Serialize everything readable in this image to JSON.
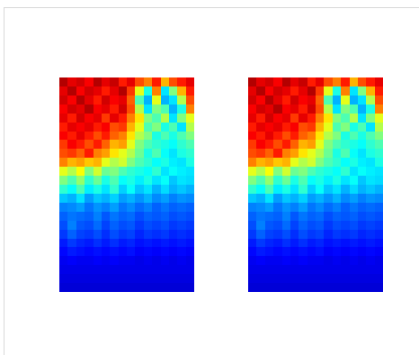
{
  "chart_data": [
    {
      "type": "heatmap",
      "tick_labels": false,
      "zlim": [
        0,
        1
      ],
      "cells": [
        [
          0.95,
          0.9,
          0.92,
          0.88,
          0.95,
          0.9,
          0.93,
          0.85,
          0.9,
          0.8,
          0.75,
          0.85,
          0.7,
          0.8,
          0.85,
          0.9
        ],
        [
          0.9,
          0.95,
          0.88,
          0.92,
          0.9,
          0.85,
          0.9,
          0.95,
          0.82,
          0.6,
          0.4,
          0.75,
          0.35,
          0.5,
          0.7,
          0.85
        ],
        [
          0.92,
          0.88,
          0.95,
          0.9,
          0.85,
          0.92,
          0.88,
          0.9,
          0.78,
          0.45,
          0.3,
          0.6,
          0.3,
          0.35,
          0.55,
          0.8
        ],
        [
          0.88,
          0.92,
          0.9,
          0.95,
          0.88,
          0.9,
          0.85,
          0.92,
          0.8,
          0.55,
          0.35,
          0.5,
          0.45,
          0.3,
          0.4,
          0.75
        ],
        [
          0.9,
          0.85,
          0.92,
          0.88,
          0.9,
          0.82,
          0.9,
          0.85,
          0.75,
          0.65,
          0.5,
          0.45,
          0.55,
          0.35,
          0.5,
          0.6
        ],
        [
          0.85,
          0.9,
          0.88,
          0.9,
          0.85,
          0.88,
          0.8,
          0.82,
          0.7,
          0.6,
          0.45,
          0.5,
          0.4,
          0.45,
          0.35,
          0.55
        ],
        [
          0.88,
          0.85,
          0.9,
          0.85,
          0.8,
          0.85,
          0.78,
          0.75,
          0.65,
          0.55,
          0.5,
          0.4,
          0.45,
          0.4,
          0.45,
          0.5
        ],
        [
          0.82,
          0.88,
          0.85,
          0.8,
          0.85,
          0.78,
          0.7,
          0.72,
          0.6,
          0.5,
          0.45,
          0.42,
          0.4,
          0.38,
          0.42,
          0.45
        ],
        [
          0.8,
          0.82,
          0.78,
          0.85,
          0.75,
          0.72,
          0.65,
          0.6,
          0.55,
          0.48,
          0.4,
          0.45,
          0.38,
          0.35,
          0.4,
          0.42
        ],
        [
          0.75,
          0.7,
          0.72,
          0.68,
          0.7,
          0.6,
          0.55,
          0.58,
          0.5,
          0.45,
          0.42,
          0.38,
          0.4,
          0.36,
          0.35,
          0.4
        ],
        [
          0.6,
          0.55,
          0.62,
          0.5,
          0.58,
          0.48,
          0.5,
          0.45,
          0.42,
          0.4,
          0.38,
          0.42,
          0.35,
          0.38,
          0.36,
          0.35
        ],
        [
          0.5,
          0.45,
          0.52,
          0.42,
          0.48,
          0.4,
          0.45,
          0.38,
          0.4,
          0.36,
          0.4,
          0.35,
          0.38,
          0.32,
          0.35,
          0.34
        ],
        [
          0.42,
          0.38,
          0.45,
          0.36,
          0.4,
          0.35,
          0.42,
          0.33,
          0.38,
          0.32,
          0.35,
          0.3,
          0.34,
          0.3,
          0.32,
          0.3
        ],
        [
          0.32,
          0.3,
          0.35,
          0.28,
          0.32,
          0.3,
          0.33,
          0.28,
          0.3,
          0.27,
          0.3,
          0.26,
          0.28,
          0.25,
          0.27,
          0.26
        ],
        [
          0.25,
          0.26,
          0.28,
          0.24,
          0.27,
          0.25,
          0.28,
          0.24,
          0.26,
          0.23,
          0.25,
          0.22,
          0.24,
          0.22,
          0.23,
          0.22
        ],
        [
          0.22,
          0.24,
          0.23,
          0.22,
          0.25,
          0.21,
          0.24,
          0.22,
          0.23,
          0.2,
          0.22,
          0.21,
          0.22,
          0.2,
          0.21,
          0.2
        ],
        [
          0.2,
          0.25,
          0.21,
          0.2,
          0.23,
          0.19,
          0.22,
          0.2,
          0.21,
          0.18,
          0.2,
          0.19,
          0.2,
          0.18,
          0.19,
          0.18
        ],
        [
          0.18,
          0.22,
          0.19,
          0.18,
          0.2,
          0.17,
          0.2,
          0.18,
          0.19,
          0.16,
          0.18,
          0.17,
          0.18,
          0.16,
          0.17,
          0.16
        ],
        [
          0.15,
          0.18,
          0.16,
          0.15,
          0.17,
          0.15,
          0.17,
          0.15,
          0.16,
          0.14,
          0.15,
          0.14,
          0.15,
          0.14,
          0.15,
          0.14
        ],
        [
          0.13,
          0.15,
          0.14,
          0.13,
          0.14,
          0.13,
          0.14,
          0.13,
          0.14,
          0.12,
          0.13,
          0.12,
          0.13,
          0.12,
          0.13,
          0.12
        ],
        [
          0.11,
          0.12,
          0.11,
          0.11,
          0.12,
          0.11,
          0.12,
          0.11,
          0.11,
          0.1,
          0.11,
          0.1,
          0.11,
          0.1,
          0.11,
          0.1
        ],
        [
          0.1,
          0.1,
          0.1,
          0.1,
          0.1,
          0.1,
          0.1,
          0.1,
          0.1,
          0.1,
          0.1,
          0.1,
          0.1,
          0.1,
          0.1,
          0.1
        ],
        [
          0.09,
          0.09,
          0.09,
          0.09,
          0.09,
          0.09,
          0.09,
          0.09,
          0.09,
          0.09,
          0.09,
          0.09,
          0.09,
          0.09,
          0.09,
          0.09
        ],
        [
          0.08,
          0.08,
          0.08,
          0.08,
          0.08,
          0.08,
          0.08,
          0.08,
          0.08,
          0.08,
          0.08,
          0.08,
          0.08,
          0.08,
          0.08,
          0.08
        ]
      ]
    },
    {
      "type": "heatmap",
      "tick_labels": false,
      "zlim": [
        0,
        1
      ],
      "cells": [
        [
          0.95,
          0.9,
          0.92,
          0.88,
          0.95,
          0.9,
          0.93,
          0.85,
          0.9,
          0.8,
          0.75,
          0.85,
          0.7,
          0.8,
          0.85,
          0.9
        ],
        [
          0.9,
          0.95,
          0.88,
          0.92,
          0.9,
          0.85,
          0.9,
          0.95,
          0.82,
          0.6,
          0.4,
          0.75,
          0.35,
          0.5,
          0.7,
          0.85
        ],
        [
          0.92,
          0.88,
          0.95,
          0.9,
          0.85,
          0.92,
          0.88,
          0.9,
          0.78,
          0.45,
          0.3,
          0.6,
          0.3,
          0.35,
          0.55,
          0.8
        ],
        [
          0.88,
          0.92,
          0.9,
          0.95,
          0.88,
          0.9,
          0.85,
          0.92,
          0.8,
          0.55,
          0.35,
          0.5,
          0.45,
          0.3,
          0.4,
          0.75
        ],
        [
          0.9,
          0.85,
          0.92,
          0.88,
          0.9,
          0.82,
          0.9,
          0.85,
          0.75,
          0.65,
          0.5,
          0.45,
          0.55,
          0.35,
          0.5,
          0.6
        ],
        [
          0.85,
          0.9,
          0.88,
          0.9,
          0.85,
          0.88,
          0.8,
          0.82,
          0.7,
          0.6,
          0.45,
          0.5,
          0.4,
          0.45,
          0.35,
          0.55
        ],
        [
          0.88,
          0.85,
          0.9,
          0.85,
          0.8,
          0.85,
          0.78,
          0.75,
          0.65,
          0.55,
          0.5,
          0.4,
          0.45,
          0.4,
          0.45,
          0.5
        ],
        [
          0.82,
          0.88,
          0.85,
          0.8,
          0.85,
          0.78,
          0.7,
          0.72,
          0.6,
          0.5,
          0.45,
          0.42,
          0.4,
          0.38,
          0.42,
          0.45
        ],
        [
          0.8,
          0.82,
          0.78,
          0.85,
          0.75,
          0.72,
          0.65,
          0.6,
          0.55,
          0.48,
          0.4,
          0.45,
          0.38,
          0.35,
          0.4,
          0.42
        ],
        [
          0.75,
          0.7,
          0.72,
          0.68,
          0.7,
          0.6,
          0.55,
          0.58,
          0.5,
          0.45,
          0.42,
          0.38,
          0.4,
          0.36,
          0.35,
          0.4
        ],
        [
          0.6,
          0.55,
          0.62,
          0.5,
          0.58,
          0.48,
          0.5,
          0.45,
          0.42,
          0.4,
          0.38,
          0.42,
          0.35,
          0.38,
          0.36,
          0.35
        ],
        [
          0.5,
          0.45,
          0.52,
          0.42,
          0.48,
          0.4,
          0.45,
          0.38,
          0.4,
          0.36,
          0.4,
          0.35,
          0.38,
          0.32,
          0.35,
          0.34
        ],
        [
          0.42,
          0.38,
          0.45,
          0.36,
          0.4,
          0.35,
          0.42,
          0.33,
          0.38,
          0.32,
          0.35,
          0.3,
          0.34,
          0.3,
          0.32,
          0.3
        ],
        [
          0.32,
          0.3,
          0.35,
          0.28,
          0.32,
          0.3,
          0.33,
          0.28,
          0.3,
          0.27,
          0.3,
          0.26,
          0.28,
          0.25,
          0.27,
          0.26
        ],
        [
          0.25,
          0.26,
          0.28,
          0.24,
          0.27,
          0.25,
          0.28,
          0.24,
          0.26,
          0.23,
          0.25,
          0.22,
          0.24,
          0.22,
          0.23,
          0.22
        ],
        [
          0.22,
          0.24,
          0.23,
          0.22,
          0.25,
          0.21,
          0.24,
          0.22,
          0.23,
          0.2,
          0.22,
          0.21,
          0.22,
          0.2,
          0.21,
          0.2
        ],
        [
          0.2,
          0.25,
          0.21,
          0.2,
          0.23,
          0.19,
          0.22,
          0.2,
          0.21,
          0.18,
          0.2,
          0.19,
          0.2,
          0.18,
          0.19,
          0.18
        ],
        [
          0.18,
          0.22,
          0.19,
          0.18,
          0.2,
          0.17,
          0.2,
          0.18,
          0.19,
          0.16,
          0.18,
          0.17,
          0.18,
          0.16,
          0.17,
          0.16
        ],
        [
          0.15,
          0.18,
          0.16,
          0.15,
          0.17,
          0.15,
          0.17,
          0.15,
          0.16,
          0.14,
          0.15,
          0.14,
          0.15,
          0.14,
          0.15,
          0.14
        ],
        [
          0.13,
          0.15,
          0.14,
          0.13,
          0.14,
          0.13,
          0.14,
          0.13,
          0.14,
          0.12,
          0.13,
          0.12,
          0.13,
          0.12,
          0.13,
          0.12
        ],
        [
          0.11,
          0.12,
          0.11,
          0.11,
          0.12,
          0.11,
          0.12,
          0.11,
          0.11,
          0.1,
          0.11,
          0.1,
          0.11,
          0.1,
          0.11,
          0.1
        ],
        [
          0.1,
          0.1,
          0.1,
          0.1,
          0.1,
          0.1,
          0.1,
          0.1,
          0.1,
          0.1,
          0.1,
          0.1,
          0.1,
          0.1,
          0.1,
          0.1
        ],
        [
          0.09,
          0.09,
          0.09,
          0.09,
          0.09,
          0.09,
          0.09,
          0.09,
          0.09,
          0.09,
          0.09,
          0.09,
          0.09,
          0.09,
          0.09,
          0.09
        ],
        [
          0.08,
          0.08,
          0.08,
          0.08,
          0.08,
          0.08,
          0.08,
          0.08,
          0.08,
          0.08,
          0.08,
          0.08,
          0.08,
          0.08,
          0.08,
          0.08
        ]
      ]
    }
  ]
}
